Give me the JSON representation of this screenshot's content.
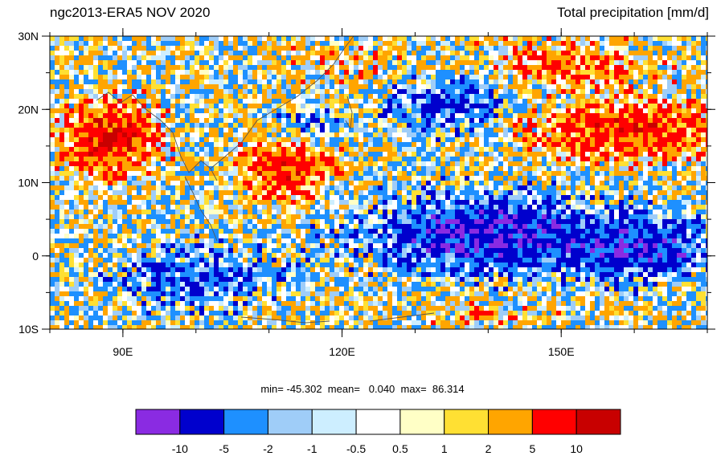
{
  "header": {
    "left_title": "ngc2013-ERA5 NOV 2020",
    "right_title": "Total precipitation [mm/d]"
  },
  "stats": {
    "text": "min= -45.302  mean=   0.040  max=  86.314"
  },
  "map": {
    "lon_range": [
      80,
      170
    ],
    "lat_range": [
      -10,
      30
    ],
    "lon_ticks": [
      {
        "value": 90,
        "label": "90E"
      },
      {
        "value": 120,
        "label": "120E"
      },
      {
        "value": 150,
        "label": "150E"
      }
    ],
    "lat_ticks": [
      {
        "value": 30,
        "label": "30N"
      },
      {
        "value": 20,
        "label": "20N"
      },
      {
        "value": 10,
        "label": "10N"
      },
      {
        "value": 0,
        "label": "0"
      },
      {
        "value": -10,
        "label": "10S"
      }
    ]
  },
  "colorbar": {
    "colors": [
      "#8a2be2",
      "#0000cd",
      "#1e90ff",
      "#9fcdf8",
      "#cdeeff",
      "#ffffff",
      "#ffffc6",
      "#ffe033",
      "#ffa500",
      "#ff0000",
      "#c80000"
    ],
    "labels": [
      "-10",
      "-5",
      "-2",
      "-1",
      "-0.5",
      "0.5",
      "1",
      "2",
      "5",
      "10"
    ]
  }
}
